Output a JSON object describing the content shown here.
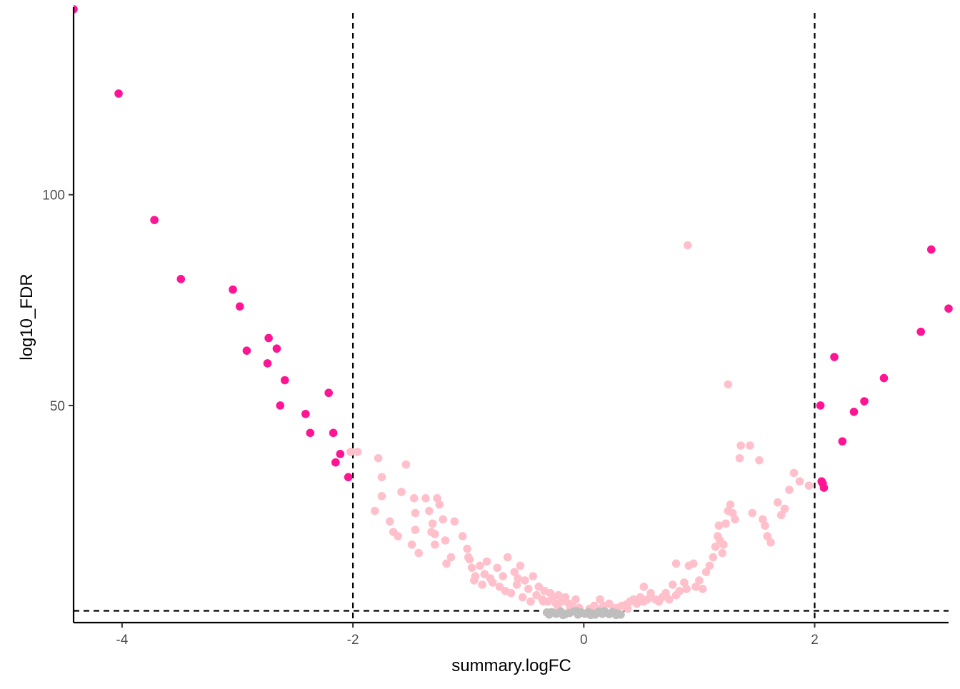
{
  "chart_data": {
    "type": "scatter",
    "xlabel": "summary.logFC",
    "ylabel": "log10_FDR",
    "xlim": [
      -4.42,
      3.16
    ],
    "ylim": [
      -1.5,
      144.5
    ],
    "x_ticks": [
      -4,
      -2,
      0,
      2
    ],
    "x_tick_labels": [
      "-4",
      "-2",
      "0",
      "2"
    ],
    "y_ticks": [
      50,
      100
    ],
    "y_tick_labels": [
      "50",
      "100"
    ],
    "grid": false,
    "legend": "none",
    "thresholds": {
      "vlines": [
        -2,
        2
      ],
      "hline": 1.3,
      "line_color": "#000000",
      "line_style": "dashed"
    },
    "colors": {
      "strong": "#FF1493",
      "significant": "#FFC0CB",
      "ns": "#BEBEBE",
      "axis": "#000000"
    },
    "series": [
      {
        "group": "strong",
        "color": "#FF1493",
        "points": [
          [
            -4.42,
            144.0
          ],
          [
            -4.03,
            124.0
          ],
          [
            -3.72,
            94.0
          ],
          [
            -3.49,
            80.0
          ],
          [
            -3.04,
            77.5
          ],
          [
            -2.98,
            73.5
          ],
          [
            -2.92,
            63.0
          ],
          [
            -2.74,
            60.0
          ],
          [
            -2.73,
            66.0
          ],
          [
            -2.66,
            63.5
          ],
          [
            -2.63,
            50.0
          ],
          [
            -2.59,
            56.0
          ],
          [
            -2.41,
            48.0
          ],
          [
            -2.37,
            43.5
          ],
          [
            -2.21,
            53.0
          ],
          [
            -2.17,
            43.5
          ],
          [
            -2.15,
            36.5
          ],
          [
            -2.11,
            38.5
          ],
          [
            -2.04,
            33.0
          ],
          [
            2.05,
            50.0
          ],
          [
            2.06,
            32.0
          ],
          [
            2.07,
            31.5
          ],
          [
            2.08,
            30.5
          ],
          [
            2.17,
            61.5
          ],
          [
            2.24,
            41.5
          ],
          [
            2.34,
            48.5
          ],
          [
            2.43,
            51.0
          ],
          [
            2.6,
            56.5
          ],
          [
            2.92,
            67.5
          ],
          [
            3.01,
            87.0
          ],
          [
            3.16,
            73.0
          ]
        ]
      },
      {
        "group": "significant",
        "color": "#FFC0CB",
        "points": [
          [
            -2.02,
            39.0
          ],
          [
            -1.96,
            39.0
          ],
          [
            -1.78,
            37.5
          ],
          [
            -1.75,
            33.0
          ],
          [
            -1.75,
            28.5
          ],
          [
            -1.81,
            25.0
          ],
          [
            -1.68,
            22.5
          ],
          [
            -1.65,
            20.0
          ],
          [
            -1.61,
            19.0
          ],
          [
            -1.58,
            29.5
          ],
          [
            -1.54,
            36.0
          ],
          [
            -1.49,
            17.0
          ],
          [
            -1.47,
            28.0
          ],
          [
            -1.46,
            24.5
          ],
          [
            -1.46,
            20.5
          ],
          [
            -1.43,
            15.0
          ],
          [
            -1.37,
            28.0
          ],
          [
            -1.34,
            25.0
          ],
          [
            -1.32,
            20.0
          ],
          [
            -1.31,
            22.0
          ],
          [
            -1.29,
            19.5
          ],
          [
            -1.29,
            17.0
          ],
          [
            -1.27,
            28.0
          ],
          [
            -1.25,
            26.5
          ],
          [
            -1.22,
            23.0
          ],
          [
            -1.2,
            18.0
          ],
          [
            -1.19,
            12.5
          ],
          [
            -1.15,
            14.0
          ],
          [
            -1.12,
            22.5
          ],
          [
            -1.05,
            19.0
          ],
          [
            -1.01,
            16.0
          ],
          [
            -1.0,
            14.0
          ],
          [
            -0.99,
            13.5
          ],
          [
            -0.97,
            11.5
          ],
          [
            -0.95,
            8.5
          ],
          [
            -0.94,
            9.5
          ],
          [
            -0.9,
            12.0
          ],
          [
            -0.88,
            7.5
          ],
          [
            -0.86,
            10.0
          ],
          [
            -0.84,
            13.0
          ],
          [
            -0.81,
            9.0
          ],
          [
            -0.79,
            8.0
          ],
          [
            -0.75,
            11.5
          ],
          [
            -0.73,
            7.0
          ],
          [
            -0.7,
            9.5
          ],
          [
            -0.68,
            6.0
          ],
          [
            -0.66,
            14.0
          ],
          [
            -0.63,
            5.5
          ],
          [
            -0.6,
            10.5
          ],
          [
            -0.58,
            7.5
          ],
          [
            -0.57,
            9.0
          ],
          [
            -0.55,
            12.0
          ],
          [
            -0.53,
            4.5
          ],
          [
            -0.51,
            8.5
          ],
          [
            -0.48,
            6.5
          ],
          [
            -0.46,
            3.5
          ],
          [
            -0.44,
            9.5
          ],
          [
            -0.41,
            5.0
          ],
          [
            -0.39,
            7.0
          ],
          [
            -0.36,
            4.0
          ],
          [
            -0.34,
            6.0
          ],
          [
            -0.31,
            3.5
          ],
          [
            -0.29,
            5.5
          ],
          [
            -0.27,
            4.5
          ],
          [
            -0.24,
            3.0
          ],
          [
            -0.22,
            5.0
          ],
          [
            -0.19,
            3.5
          ],
          [
            -0.16,
            4.5
          ],
          [
            -0.13,
            3.0
          ],
          [
            -0.1,
            2.5
          ],
          [
            -0.07,
            4.0
          ],
          [
            -0.04,
            2.0
          ],
          [
            0.05,
            1.8
          ],
          [
            0.09,
            2.5
          ],
          [
            0.14,
            4.0
          ],
          [
            0.17,
            2.5
          ],
          [
            0.22,
            3.0
          ],
          [
            0.26,
            1.9
          ],
          [
            0.29,
            2.0
          ],
          [
            0.33,
            2.5
          ],
          [
            0.37,
            2.8
          ],
          [
            0.4,
            3.5
          ],
          [
            0.43,
            4.0
          ],
          [
            0.46,
            3.0
          ],
          [
            0.49,
            4.5
          ],
          [
            0.52,
            3.5
          ],
          [
            0.55,
            4.0
          ],
          [
            0.58,
            5.5
          ],
          [
            0.62,
            4.0
          ],
          [
            0.65,
            3.5
          ],
          [
            0.68,
            4.5
          ],
          [
            0.71,
            5.5
          ],
          [
            0.74,
            4.0
          ],
          [
            0.77,
            7.5
          ],
          [
            0.8,
            5.0
          ],
          [
            0.83,
            6.0
          ],
          [
            0.87,
            8.0
          ],
          [
            0.89,
            6.5
          ],
          [
            0.91,
            12.0
          ],
          [
            0.95,
            12.5
          ],
          [
            0.97,
            7.0
          ],
          [
            1.0,
            8.5
          ],
          [
            1.03,
            6.5
          ],
          [
            1.06,
            10.5
          ],
          [
            1.09,
            12.0
          ],
          [
            1.12,
            14.0
          ],
          [
            1.14,
            16.5
          ],
          [
            1.16,
            19.0
          ],
          [
            1.17,
            21.5
          ],
          [
            1.18,
            18.0
          ],
          [
            1.2,
            15.0
          ],
          [
            1.21,
            17.0
          ],
          [
            1.23,
            22.0
          ],
          [
            1.25,
            25.0
          ],
          [
            1.27,
            26.5
          ],
          [
            1.29,
            24.5
          ],
          [
            1.31,
            23.0
          ],
          [
            1.35,
            37.5
          ],
          [
            1.36,
            40.5
          ],
          [
            1.44,
            40.5
          ],
          [
            1.46,
            24.5
          ],
          [
            1.52,
            37.0
          ],
          [
            1.55,
            23.0
          ],
          [
            1.57,
            21.5
          ],
          [
            1.59,
            19.0
          ],
          [
            1.62,
            17.5
          ],
          [
            1.68,
            27.0
          ],
          [
            1.71,
            24.0
          ],
          [
            1.74,
            25.5
          ],
          [
            1.78,
            30.0
          ],
          [
            1.82,
            34.0
          ],
          [
            1.87,
            32.0
          ],
          [
            1.95,
            31.0
          ],
          [
            0.9,
            88.0
          ],
          [
            1.25,
            55.0
          ],
          [
            0.8,
            12.5
          ],
          [
            0.52,
            7.0
          ],
          [
            0.38,
            1.8
          ],
          [
            -0.35,
            3.5
          ],
          [
            -0.22,
            1.8
          ],
          [
            -0.12,
            1.6
          ],
          [
            0.12,
            1.6
          ]
        ]
      },
      {
        "group": "ns",
        "color": "#BEBEBE",
        "points": [
          [
            -0.32,
            0.9
          ],
          [
            -0.28,
            1.0
          ],
          [
            -0.24,
            0.6
          ],
          [
            -0.2,
            1.1
          ],
          [
            -0.16,
            0.5
          ],
          [
            -0.12,
            0.8
          ],
          [
            -0.08,
            1.2
          ],
          [
            -0.05,
            0.4
          ],
          [
            -0.02,
            0.9
          ],
          [
            0.01,
            0.6
          ],
          [
            0.04,
            1.0
          ],
          [
            0.07,
            0.7
          ],
          [
            0.1,
            0.4
          ],
          [
            0.13,
            1.1
          ],
          [
            0.16,
            0.6
          ],
          [
            0.19,
            0.9
          ],
          [
            0.22,
            0.5
          ],
          [
            0.25,
            1.0
          ],
          [
            0.29,
            0.7
          ],
          [
            0.32,
            0.4
          ],
          [
            -0.3,
            0.4
          ],
          [
            -0.18,
            0.3
          ],
          [
            -0.06,
            1.2
          ],
          [
            0.06,
            0.3
          ],
          [
            0.18,
            1.2
          ],
          [
            0.28,
            0.3
          ]
        ]
      }
    ]
  }
}
